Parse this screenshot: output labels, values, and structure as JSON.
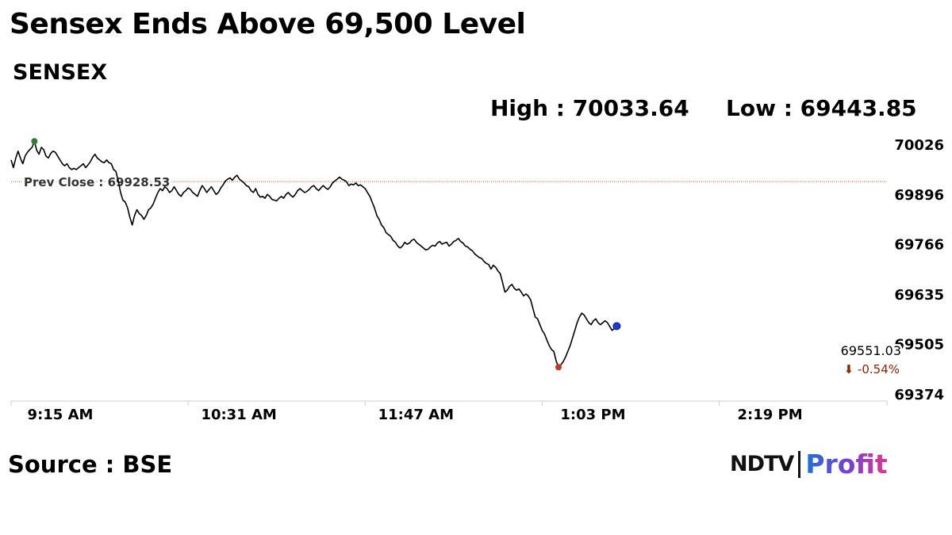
{
  "title": "Sensex Ends Above 69,500 Level",
  "index_name": "SENSEX",
  "stats": {
    "high_label": "High : ",
    "high_value": "70033.64",
    "low_label": "Low : ",
    "low_value": "69443.85"
  },
  "source": "Source : BSE",
  "logo": {
    "part1": "NDTV",
    "part2": "Profit"
  },
  "colors": {
    "line": "#000000",
    "prev_close_line": "#c0522a",
    "high_marker": "#2e7d32",
    "low_marker": "#c0392b",
    "last_marker": "#1a3bd6",
    "change_text": "#8b2500"
  },
  "chart_data": {
    "type": "line",
    "ylim": [
      69374,
      70026
    ],
    "y_ticks": [
      "70026",
      "69896",
      "69766",
      "69635",
      "69505",
      "69374"
    ],
    "x_ticks": [
      "9:15 AM",
      "10:31 AM",
      "11:47 AM",
      "1:03 PM",
      "2:19 PM"
    ],
    "x_tick_minutes": [
      0,
      76,
      152,
      228,
      304
    ],
    "x_range_minutes": [
      0,
      376
    ],
    "prev_close": {
      "label": "Prev Close : 69928.53",
      "value": 69928.53
    },
    "last": {
      "value": 69551.03,
      "label": "69551.03",
      "change_label": "⬇ -0.54%"
    },
    "series": [
      {
        "points": [
          [
            0,
            69985
          ],
          [
            1,
            69965
          ],
          [
            2,
            69990
          ],
          [
            3,
            70008
          ],
          [
            4,
            69990
          ],
          [
            5,
            69975
          ],
          [
            6,
            69995
          ],
          [
            7,
            70005
          ],
          [
            8,
            70012
          ],
          [
            9,
            70018
          ],
          [
            10,
            70033.64
          ],
          [
            11,
            70010
          ],
          [
            12,
            70000
          ],
          [
            13,
            70018
          ],
          [
            14,
            70012
          ],
          [
            15,
            69995
          ],
          [
            16,
            69990
          ],
          [
            17,
            70002
          ],
          [
            18,
            70008
          ],
          [
            19,
            70005
          ],
          [
            20,
            69995
          ],
          [
            21,
            69985
          ],
          [
            22,
            69975
          ],
          [
            23,
            69970
          ],
          [
            24,
            69975
          ],
          [
            25,
            69965
          ],
          [
            26,
            69960
          ],
          [
            27,
            69963
          ],
          [
            28,
            69960
          ],
          [
            29,
            69965
          ],
          [
            30,
            69970
          ],
          [
            31,
            69975
          ],
          [
            32,
            69965
          ],
          [
            33,
            69972
          ],
          [
            34,
            69980
          ],
          [
            35,
            69992
          ],
          [
            36,
            70000
          ],
          [
            37,
            69990
          ],
          [
            38,
            69985
          ],
          [
            39,
            69980
          ],
          [
            40,
            69978
          ],
          [
            41,
            69985
          ],
          [
            42,
            69978
          ],
          [
            43,
            69975
          ],
          [
            44,
            69960
          ],
          [
            45,
            69955
          ],
          [
            46,
            69930
          ],
          [
            47,
            69900
          ],
          [
            48,
            69880
          ],
          [
            49,
            69875
          ],
          [
            50,
            69860
          ],
          [
            51,
            69835
          ],
          [
            52,
            69815
          ],
          [
            53,
            69840
          ],
          [
            54,
            69855
          ],
          [
            55,
            69845
          ],
          [
            56,
            69840
          ],
          [
            57,
            69830
          ],
          [
            58,
            69840
          ],
          [
            59,
            69855
          ],
          [
            60,
            69860
          ],
          [
            61,
            69870
          ],
          [
            62,
            69885
          ],
          [
            63,
            69900
          ],
          [
            64,
            69910
          ],
          [
            65,
            69905
          ],
          [
            66,
            69915
          ],
          [
            67,
            69910
          ],
          [
            68,
            69900
          ],
          [
            69,
            69905
          ],
          [
            70,
            69915
          ],
          [
            71,
            69905
          ],
          [
            72,
            69895
          ],
          [
            73,
            69890
          ],
          [
            74,
            69900
          ],
          [
            75,
            69905
          ],
          [
            76,
            69912
          ],
          [
            77,
            69908
          ],
          [
            78,
            69900
          ],
          [
            79,
            69895
          ],
          [
            80,
            69890
          ],
          [
            81,
            69905
          ],
          [
            82,
            69918
          ],
          [
            83,
            69910
          ],
          [
            84,
            69900
          ],
          [
            85,
            69908
          ],
          [
            86,
            69915
          ],
          [
            87,
            69905
          ],
          [
            88,
            69895
          ],
          [
            89,
            69900
          ],
          [
            90,
            69912
          ],
          [
            91,
            69920
          ],
          [
            92,
            69930
          ],
          [
            93,
            69935
          ],
          [
            94,
            69938
          ],
          [
            95,
            69932
          ],
          [
            96,
            69940
          ],
          [
            97,
            69945
          ],
          [
            98,
            69935
          ],
          [
            99,
            69930
          ],
          [
            100,
            69925
          ],
          [
            101,
            69918
          ],
          [
            102,
            69915
          ],
          [
            103,
            69905
          ],
          [
            104,
            69900
          ],
          [
            105,
            69910
          ],
          [
            106,
            69895
          ],
          [
            107,
            69888
          ],
          [
            108,
            69890
          ],
          [
            109,
            69885
          ],
          [
            110,
            69895
          ],
          [
            111,
            69890
          ],
          [
            112,
            69882
          ],
          [
            113,
            69880
          ],
          [
            114,
            69878
          ],
          [
            115,
            69885
          ],
          [
            116,
            69890
          ],
          [
            117,
            69885
          ],
          [
            118,
            69895
          ],
          [
            119,
            69900
          ],
          [
            120,
            69893
          ],
          [
            121,
            69888
          ],
          [
            122,
            69895
          ],
          [
            123,
            69905
          ],
          [
            124,
            69910
          ],
          [
            125,
            69905
          ],
          [
            126,
            69900
          ],
          [
            127,
            69903
          ],
          [
            128,
            69908
          ],
          [
            129,
            69915
          ],
          [
            130,
            69918
          ],
          [
            131,
            69910
          ],
          [
            132,
            69905
          ],
          [
            133,
            69912
          ],
          [
            134,
            69918
          ],
          [
            135,
            69912
          ],
          [
            136,
            69908
          ],
          [
            137,
            69915
          ],
          [
            138,
            69925
          ],
          [
            139,
            69930
          ],
          [
            140,
            69935
          ],
          [
            141,
            69940
          ],
          [
            142,
            69935
          ],
          [
            143,
            69932
          ],
          [
            144,
            69928
          ],
          [
            145,
            69918
          ],
          [
            146,
            69922
          ],
          [
            147,
            69920
          ],
          [
            148,
            69925
          ],
          [
            149,
            69918
          ],
          [
            150,
            69920
          ],
          [
            151,
            69915
          ],
          [
            152,
            69910
          ],
          [
            153,
            69900
          ],
          [
            154,
            69890
          ],
          [
            155,
            69875
          ],
          [
            156,
            69860
          ],
          [
            157,
            69840
          ],
          [
            158,
            69830
          ],
          [
            159,
            69815
          ],
          [
            160,
            69808
          ],
          [
            161,
            69795
          ],
          [
            162,
            69790
          ],
          [
            163,
            69785
          ],
          [
            164,
            69775
          ],
          [
            165,
            69770
          ],
          [
            166,
            69760
          ],
          [
            167,
            69755
          ],
          [
            168,
            69760
          ],
          [
            169,
            69770
          ],
          [
            170,
            69765
          ],
          [
            171,
            69768
          ],
          [
            172,
            69775
          ],
          [
            173,
            69778
          ],
          [
            174,
            69770
          ],
          [
            175,
            69765
          ],
          [
            176,
            69760
          ],
          [
            177,
            69755
          ],
          [
            178,
            69750
          ],
          [
            179,
            69752
          ],
          [
            180,
            69758
          ],
          [
            181,
            69762
          ],
          [
            182,
            69760
          ],
          [
            183,
            69768
          ],
          [
            184,
            69772
          ],
          [
            185,
            69765
          ],
          [
            186,
            69768
          ],
          [
            187,
            69770
          ],
          [
            188,
            69760
          ],
          [
            189,
            69765
          ],
          [
            190,
            69772
          ],
          [
            191,
            69775
          ],
          [
            192,
            69780
          ],
          [
            193,
            69772
          ],
          [
            194,
            69768
          ],
          [
            195,
            69760
          ],
          [
            196,
            69758
          ],
          [
            197,
            69752
          ],
          [
            198,
            69748
          ],
          [
            199,
            69740
          ],
          [
            200,
            69735
          ],
          [
            201,
            69730
          ],
          [
            202,
            69728
          ],
          [
            203,
            69720
          ],
          [
            204,
            69715
          ],
          [
            205,
            69712
          ],
          [
            206,
            69700
          ],
          [
            207,
            69710
          ],
          [
            208,
            69705
          ],
          [
            209,
            69695
          ],
          [
            210,
            69688
          ],
          [
            211,
            69665
          ],
          [
            212,
            69640
          ],
          [
            213,
            69645
          ],
          [
            214,
            69655
          ],
          [
            215,
            69660
          ],
          [
            216,
            69650
          ],
          [
            217,
            69645
          ],
          [
            218,
            69648
          ],
          [
            219,
            69640
          ],
          [
            220,
            69630
          ],
          [
            221,
            69635
          ],
          [
            222,
            69630
          ],
          [
            223,
            69620
          ],
          [
            224,
            69598
          ],
          [
            225,
            69575
          ],
          [
            226,
            69570
          ],
          [
            227,
            69555
          ],
          [
            228,
            69540
          ],
          [
            229,
            69530
          ],
          [
            230,
            69515
          ],
          [
            231,
            69500
          ],
          [
            232,
            69490
          ],
          [
            233,
            69485
          ],
          [
            234,
            69460
          ],
          [
            235,
            69443.85
          ],
          [
            236,
            69450
          ],
          [
            237,
            69458
          ],
          [
            238,
            69470
          ],
          [
            239,
            69485
          ],
          [
            240,
            69500
          ],
          [
            241,
            69520
          ],
          [
            242,
            69540
          ],
          [
            243,
            69560
          ],
          [
            244,
            69575
          ],
          [
            245,
            69585
          ],
          [
            246,
            69580
          ],
          [
            247,
            69570
          ],
          [
            248,
            69560
          ],
          [
            249,
            69555
          ],
          [
            250,
            69565
          ],
          [
            251,
            69570
          ],
          [
            252,
            69560
          ],
          [
            253,
            69555
          ],
          [
            254,
            69560
          ],
          [
            255,
            69565
          ],
          [
            256,
            69560
          ],
          [
            257,
            69550
          ],
          [
            258,
            69540
          ],
          [
            259,
            69545
          ],
          [
            260,
            69551.03
          ]
        ]
      }
    ]
  }
}
